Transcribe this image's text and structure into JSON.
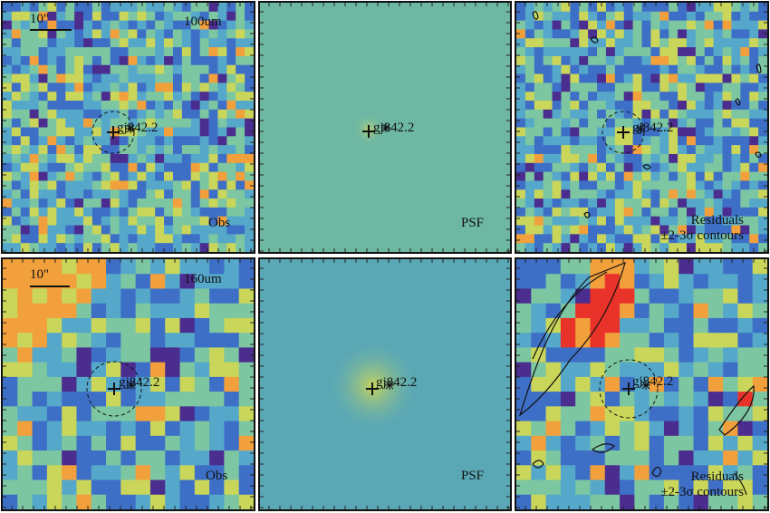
{
  "figure": {
    "panels": [
      {
        "id": "top-obs",
        "type": "observed",
        "scale_label": "10\"",
        "band_label": "100um",
        "corner_label": "Obs",
        "source_label": "gj842.2"
      },
      {
        "id": "top-psf",
        "type": "psf",
        "corner_label": "PSF",
        "source_label": "gj842.2"
      },
      {
        "id": "top-res",
        "type": "residual",
        "corner_label_1": "Residuals",
        "corner_label_2": "±2-3σ contours",
        "source_label": "gj842.2"
      },
      {
        "id": "bot-obs",
        "type": "observed",
        "scale_label": "10\"",
        "band_label": "160um",
        "corner_label": "Obs",
        "source_label": "gj842.2"
      },
      {
        "id": "bot-psf",
        "type": "psf",
        "corner_label": "PSF",
        "source_label": "gj842.2"
      },
      {
        "id": "bot-res",
        "type": "residual",
        "corner_label_1": "Residuals",
        "corner_label_2": "±2-3σ contours",
        "source_label": "gj842.2"
      }
    ],
    "colormap": [
      "#4b2c8f",
      "#3e6fc7",
      "#55a8c9",
      "#7cc6a2",
      "#c9d65a",
      "#f2a03c",
      "#e8322a"
    ],
    "psf_background": {
      "top": "#6db7a3",
      "bottom": "#5aa8b5"
    }
  }
}
